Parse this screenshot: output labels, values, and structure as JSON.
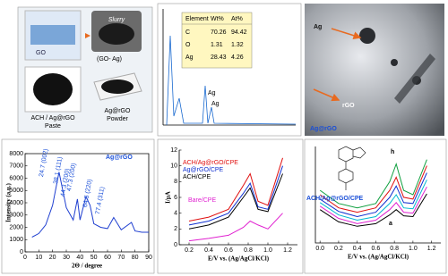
{
  "panels": {
    "synthesis": {
      "go": "GO",
      "slurry": "Slurry",
      "go_ag": "(GO- Ag)",
      "paste": [
        "ACH / Ag@rGO",
        "Paste"
      ],
      "powder": [
        "Ag@rGO",
        "Powder"
      ]
    },
    "edx": {
      "table": {
        "header": [
          "Element",
          "Wt%",
          "At%"
        ],
        "rows": [
          [
            "C",
            70.26,
            94.42
          ],
          [
            "O",
            1.31,
            1.32
          ],
          [
            "Ag",
            28.43,
            4.26
          ]
        ]
      },
      "peak_labels": [
        "Ag",
        "Ag"
      ]
    },
    "tem": {
      "labels": [
        "Ag",
        "rGO",
        "Ag@rGO"
      ]
    }
  },
  "chart_data": [
    {
      "type": "line",
      "title": "Ag@rGO",
      "xlabel": "2Θ / degree",
      "ylabel": "Intensity (a.u.)",
      "x": [
        5,
        10,
        15,
        20,
        24.7,
        30,
        35,
        38.1,
        40,
        44.3,
        47.3,
        50,
        55,
        60,
        64.5,
        70,
        77.4,
        80,
        85,
        90
      ],
      "series": [
        {
          "color": "#1f3fd0",
          "values": [
            1200,
            1500,
            2200,
            3800,
            6500,
            3600,
            2600,
            4300,
            2600,
            4500,
            3800,
            2300,
            2000,
            1900,
            2800,
            1800,
            2400,
            1700,
            1600,
            1600
          ]
        }
      ],
      "xlim": [
        0,
        90
      ],
      "xticks": [
        0,
        10,
        20,
        30,
        40,
        50,
        60,
        70,
        80,
        90
      ],
      "ylim": [
        0,
        8000
      ],
      "yticks": [
        0,
        1000,
        2000,
        3000,
        4000,
        5000,
        6000,
        7000,
        8000
      ],
      "peak_labels": [
        "24.7 (002)",
        "38.1 (111)",
        "44.3 (200)",
        "47.3 (200)",
        "64.5 (220)",
        "77.4 (311)"
      ]
    },
    {
      "type": "line",
      "xlabel": "E/V vs. (Ag/AgCl/KCl)",
      "ylabel": "I/μA",
      "x": [
        0.2,
        0.4,
        0.6,
        0.75,
        0.82,
        0.9,
        1.0,
        1.15
      ],
      "series": [
        {
          "name": "ACH/Ag@rGO/CPE",
          "color": "#e01010",
          "values": [
            3,
            3.5,
            4.5,
            7.5,
            9,
            5.5,
            5,
            11
          ]
        },
        {
          "name": "Ag@rGO/CPE",
          "color": "#1030d0",
          "values": [
            2.5,
            3,
            4,
            6.5,
            7.8,
            4.8,
            4.5,
            10
          ]
        },
        {
          "name": "ACH/CPE",
          "color": "#000000",
          "values": [
            2,
            2.5,
            3.5,
            6,
            7.2,
            4.5,
            4.2,
            9
          ]
        },
        {
          "name": "Bare/CPE",
          "color": "#e020d0",
          "values": [
            0.5,
            0.8,
            1.2,
            2.2,
            3,
            2.5,
            2,
            4
          ]
        }
      ],
      "xlim": [
        0.1,
        1.3
      ],
      "xticks": [
        0.2,
        0.4,
        0.6,
        0.8,
        {
          "value": 1,
          "label": "1.0"
        },
        1.2
      ],
      "ylim": [
        0,
        12
      ],
      "yticks": [
        0,
        2,
        4,
        6,
        8,
        10,
        12
      ]
    },
    {
      "type": "line",
      "xlabel": "E/V vs. (Ag/AgCl/KCl)",
      "label": "ACH/Ag@rGO/CPE",
      "curve_labels": [
        "h",
        "a"
      ],
      "x": [
        0,
        0.2,
        0.4,
        0.6,
        0.75,
        0.82,
        0.9,
        1.0,
        1.15
      ],
      "series": [
        {
          "color": "#10a040",
          "values": [
            6,
            4.5,
            4,
            4.5,
            7,
            9,
            6,
            5.5,
            9.5
          ]
        },
        {
          "color": "#e01010",
          "values": [
            5.5,
            4,
            3.5,
            4,
            6,
            7.5,
            5.2,
            5,
            8.8
          ]
        },
        {
          "color": "#1030d0",
          "values": [
            5,
            3.6,
            3,
            3.5,
            5.2,
            6.5,
            4.6,
            4.5,
            8
          ]
        },
        {
          "color": "#00b8d0",
          "values": [
            4.6,
            3.2,
            2.6,
            3,
            4.5,
            5.5,
            4,
            3.9,
            7.2
          ]
        },
        {
          "color": "#e020d0",
          "values": [
            4.2,
            2.8,
            2.2,
            2.6,
            3.8,
            4.6,
            3.5,
            3.4,
            6.4
          ]
        },
        {
          "color": "#000000",
          "values": [
            3.8,
            2.4,
            1.9,
            2.2,
            3.2,
            3.8,
            3.1,
            3,
            5.6
          ]
        }
      ],
      "xlim": [
        -0.05,
        1.3
      ],
      "xticks": [
        {
          "value": 0,
          "label": "0.0"
        },
        0.2,
        0.4,
        0.6,
        0.8,
        {
          "value": 1,
          "label": "1.0"
        },
        1.2
      ],
      "ylim": [
        0,
        11
      ]
    }
  ]
}
